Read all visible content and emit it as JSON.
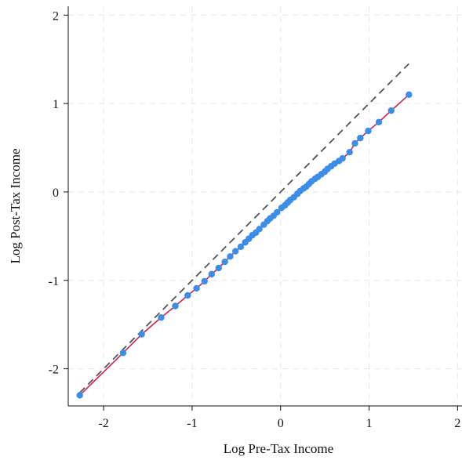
{
  "chart_data": {
    "type": "scatter",
    "title": "",
    "xlabel": "Log Pre-Tax Income",
    "ylabel": "Log Post-Tax Income",
    "xlim": [
      -2.4,
      2.05
    ],
    "ylim": [
      -2.42,
      2.1
    ],
    "x_ticks": [
      -2,
      -1,
      0,
      1,
      2
    ],
    "x_tick_labels": [
      "-2",
      "-1",
      "0",
      "1",
      "2"
    ],
    "y_ticks": [
      -2,
      -1,
      0,
      1,
      2
    ],
    "y_tick_labels": [
      "-2",
      "-1",
      "0",
      "1",
      "2"
    ],
    "grid": true,
    "colors": {
      "points": "#3b8de8",
      "fit_line": "#cc2255",
      "reference_line": "#555555",
      "grid": "#e6e6e6"
    },
    "series": [
      {
        "kind": "points",
        "x": [
          -2.27,
          -1.78,
          -1.57,
          -1.35,
          -1.19,
          -1.05,
          -0.95,
          -0.86,
          -0.78,
          -0.7,
          -0.63,
          -0.57,
          -0.51,
          -0.45,
          -0.4,
          -0.36,
          -0.32,
          -0.28,
          -0.24,
          -0.19,
          -0.15,
          -0.12,
          -0.08,
          -0.04,
          0.01,
          0.05,
          0.08,
          0.11,
          0.15,
          0.19,
          0.22,
          0.26,
          0.29,
          0.32,
          0.35,
          0.39,
          0.42,
          0.46,
          0.5,
          0.53,
          0.57,
          0.61,
          0.66,
          0.7,
          0.78,
          0.84,
          0.9,
          0.99,
          1.11,
          1.25,
          1.45
        ],
        "y": [
          -2.3,
          -1.82,
          -1.61,
          -1.42,
          -1.29,
          -1.17,
          -1.09,
          -1.01,
          -0.93,
          -0.86,
          -0.79,
          -0.73,
          -0.67,
          -0.62,
          -0.57,
          -0.53,
          -0.49,
          -0.46,
          -0.42,
          -0.37,
          -0.33,
          -0.3,
          -0.27,
          -0.23,
          -0.18,
          -0.15,
          -0.12,
          -0.09,
          -0.06,
          -0.02,
          0.01,
          0.04,
          0.06,
          0.09,
          0.12,
          0.15,
          0.17,
          0.2,
          0.23,
          0.26,
          0.29,
          0.32,
          0.35,
          0.38,
          0.45,
          0.55,
          0.61,
          0.69,
          0.79,
          0.92,
          1.1
        ]
      },
      {
        "kind": "fit_line",
        "x": [
          -2.27,
          1.45
        ],
        "y": [
          -2.26,
          1.08
        ]
      },
      {
        "kind": "reference_line",
        "x": [
          -2.27,
          1.45
        ],
        "y": [
          -2.27,
          1.45
        ]
      }
    ]
  }
}
